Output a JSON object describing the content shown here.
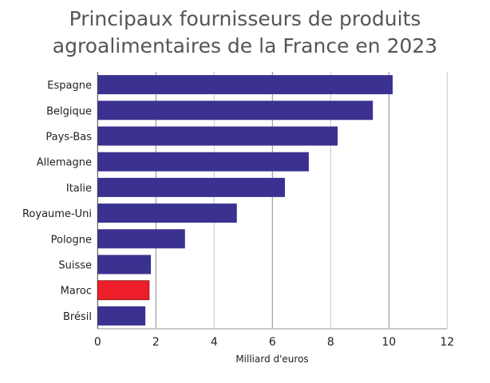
{
  "chart_data": {
    "type": "bar",
    "orientation": "horizontal",
    "title_lines": [
      "Principaux fournisseurs de produits",
      "agroalimentaires de la France en 2023"
    ],
    "xlabel": "Milliard d'euros",
    "ylabel": "",
    "xlim": [
      0,
      12
    ],
    "xticks": [
      0,
      2,
      4,
      6,
      8,
      10,
      12
    ],
    "grid": true,
    "categories": [
      "Espagne",
      "Belgique",
      "Pays-Bas",
      "Allemagne",
      "Italie",
      "Royaume-Uni",
      "Pologne",
      "Suisse",
      "Maroc",
      "Brésil"
    ],
    "values": [
      10.13,
      9.45,
      8.24,
      7.25,
      6.43,
      4.78,
      3.0,
      1.83,
      1.77,
      1.64
    ],
    "colors": {
      "default": "#3b3190",
      "highlight": "#ee1f2b"
    },
    "highlight": "Maroc"
  }
}
